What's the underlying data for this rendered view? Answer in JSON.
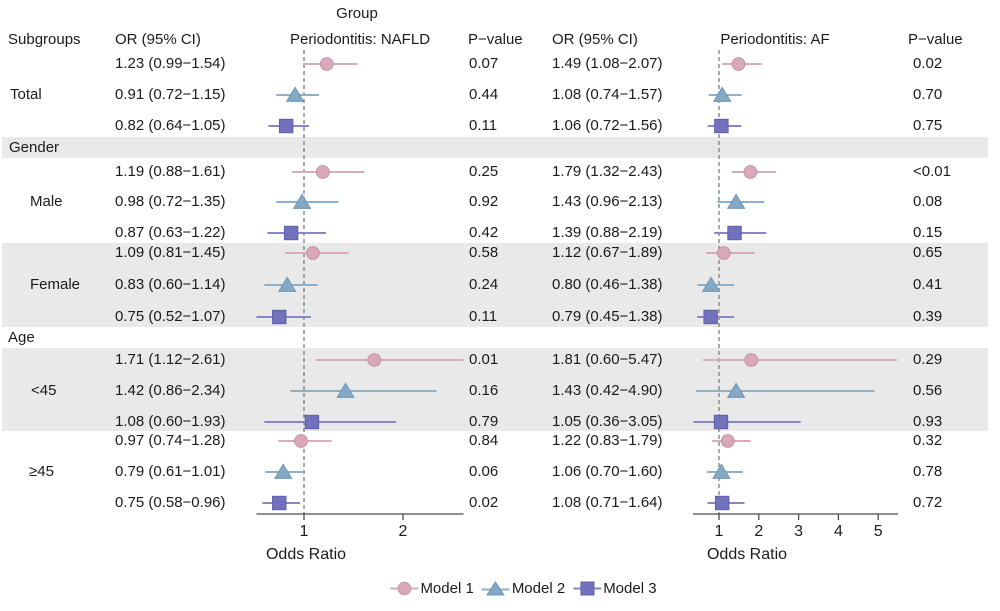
{
  "columns": {
    "subgroups": "Subgroups",
    "or_ci_left": "OR (95% CI)",
    "pvalue_left": "P−value",
    "or_ci_right": "OR (95% CI)",
    "pvalue_right": "P−value"
  },
  "colors": {
    "model1_fill": "#d9a9ba",
    "model1_stroke": "#c493a9",
    "model1_line": "#d7abbc",
    "model2_fill": "#84a9c6",
    "model2_stroke": "#6e97b6",
    "model2_line": "#8db0ca",
    "model3_fill": "#7171bc",
    "model3_stroke": "#5e5eae",
    "model3_line": "#8787c8",
    "band": "#e9e9e9",
    "axis": "#4a4a4a",
    "refline": "#858585",
    "text": "#1b1b1b"
  },
  "chart_data": {
    "type": "forest",
    "title": "Group",
    "legend": [
      "Model 1",
      "Model 2",
      "Model 3"
    ],
    "markers": {
      "Model 1": "circle",
      "Model 2": "triangle",
      "Model 3": "square"
    },
    "panels": [
      {
        "name": "Periodontitis: NAFLD",
        "xlabel": "Odds Ratio",
        "ticks": [
          1,
          2
        ],
        "xlim": [
          0.52,
          2.61
        ],
        "refline": 1,
        "scale": "linear"
      },
      {
        "name": "Periodontitis: AF",
        "xlabel": "Odds Ratio",
        "ticks": [
          1,
          2,
          3,
          4,
          5
        ],
        "xlim": [
          0.36,
          5.5
        ],
        "refline": 1,
        "scale": "linear"
      }
    ],
    "rows": [
      {
        "type": "subgroup",
        "label": "Total",
        "models": [
          {
            "model": "Model 1",
            "nafld": {
              "or": 1.23,
              "lo": 0.99,
              "hi": 1.54,
              "label": "1.23 (0.99−1.54)",
              "p": "0.07"
            },
            "af": {
              "or": 1.49,
              "lo": 1.08,
              "hi": 2.07,
              "label": "1.49 (1.08−2.07)",
              "p": "0.02"
            }
          },
          {
            "model": "Model 2",
            "nafld": {
              "or": 0.91,
              "lo": 0.72,
              "hi": 1.15,
              "label": "0.91 (0.72−1.15)",
              "p": "0.44"
            },
            "af": {
              "or": 1.08,
              "lo": 0.74,
              "hi": 1.57,
              "label": "1.08 (0.74−1.57)",
              "p": "0.70"
            }
          },
          {
            "model": "Model 3",
            "nafld": {
              "or": 0.82,
              "lo": 0.64,
              "hi": 1.05,
              "label": "0.82 (0.64−1.05)",
              "p": "0.11"
            },
            "af": {
              "or": 1.06,
              "lo": 0.72,
              "hi": 1.56,
              "label": "1.06 (0.72−1.56)",
              "p": "0.75"
            }
          }
        ]
      },
      {
        "type": "section",
        "label": "Gender"
      },
      {
        "type": "subgroup",
        "label": "Male",
        "models": [
          {
            "model": "Model 1",
            "nafld": {
              "or": 1.19,
              "lo": 0.88,
              "hi": 1.61,
              "label": "1.19 (0.88−1.61)",
              "p": "0.25"
            },
            "af": {
              "or": 1.79,
              "lo": 1.32,
              "hi": 2.43,
              "label": "1.79 (1.32−2.43)",
              "p": "<0.01"
            }
          },
          {
            "model": "Model 2",
            "nafld": {
              "or": 0.98,
              "lo": 0.72,
              "hi": 1.35,
              "label": "0.98 (0.72−1.35)",
              "p": "0.92"
            },
            "af": {
              "or": 1.43,
              "lo": 0.96,
              "hi": 2.13,
              "label": "1.43 (0.96−2.13)",
              "p": "0.08"
            }
          },
          {
            "model": "Model 3",
            "nafld": {
              "or": 0.87,
              "lo": 0.63,
              "hi": 1.22,
              "label": "0.87 (0.63−1.22)",
              "p": "0.42"
            },
            "af": {
              "or": 1.39,
              "lo": 0.88,
              "hi": 2.19,
              "label": "1.39 (0.88−2.19)",
              "p": "0.15"
            }
          }
        ]
      },
      {
        "type": "subgroup",
        "label": "Female",
        "models": [
          {
            "model": "Model 1",
            "nafld": {
              "or": 1.09,
              "lo": 0.81,
              "hi": 1.45,
              "label": "1.09 (0.81−1.45)",
              "p": "0.58"
            },
            "af": {
              "or": 1.12,
              "lo": 0.67,
              "hi": 1.89,
              "label": "1.12 (0.67−1.89)",
              "p": "0.65"
            }
          },
          {
            "model": "Model 2",
            "nafld": {
              "or": 0.83,
              "lo": 0.6,
              "hi": 1.14,
              "label": "0.83 (0.60−1.14)",
              "p": "0.24"
            },
            "af": {
              "or": 0.8,
              "lo": 0.46,
              "hi": 1.38,
              "label": "0.80 (0.46−1.38)",
              "p": "0.41"
            }
          },
          {
            "model": "Model 3",
            "nafld": {
              "or": 0.75,
              "lo": 0.52,
              "hi": 1.07,
              "label": "0.75 (0.52−1.07)",
              "p": "0.11"
            },
            "af": {
              "or": 0.79,
              "lo": 0.45,
              "hi": 1.38,
              "label": "0.79 (0.45−1.38)",
              "p": "0.39"
            }
          }
        ]
      },
      {
        "type": "section",
        "label": "Age"
      },
      {
        "type": "subgroup",
        "label": "<45",
        "models": [
          {
            "model": "Model 1",
            "nafld": {
              "or": 1.71,
              "lo": 1.12,
              "hi": 2.61,
              "label": "1.71 (1.12−2.61)",
              "p": "0.01"
            },
            "af": {
              "or": 1.81,
              "lo": 0.6,
              "hi": 5.47,
              "label": "1.81 (0.60−5.47)",
              "p": "0.29"
            }
          },
          {
            "model": "Model 2",
            "nafld": {
              "or": 1.42,
              "lo": 0.86,
              "hi": 2.34,
              "label": "1.42 (0.86−2.34)",
              "p": "0.16"
            },
            "af": {
              "or": 1.43,
              "lo": 0.42,
              "hi": 4.9,
              "label": "1.43 (0.42−4.90)",
              "p": "0.56"
            }
          },
          {
            "model": "Model 3",
            "nafld": {
              "or": 1.08,
              "lo": 0.6,
              "hi": 1.93,
              "label": "1.08 (0.60−1.93)",
              "p": "0.79"
            },
            "af": {
              "or": 1.05,
              "lo": 0.36,
              "hi": 3.05,
              "label": "1.05 (0.36−3.05)",
              "p": "0.93"
            }
          }
        ]
      },
      {
        "type": "subgroup",
        "label": "≥45",
        "models": [
          {
            "model": "Model 1",
            "nafld": {
              "or": 0.97,
              "lo": 0.74,
              "hi": 1.28,
              "label": "0.97 (0.74−1.28)",
              "p": "0.84"
            },
            "af": {
              "or": 1.22,
              "lo": 0.83,
              "hi": 1.79,
              "label": "1.22 (0.83−1.79)",
              "p": "0.32"
            }
          },
          {
            "model": "Model 2",
            "nafld": {
              "or": 0.79,
              "lo": 0.61,
              "hi": 1.01,
              "label": "0.79 (0.61−1.01)",
              "p": "0.06"
            },
            "af": {
              "or": 1.06,
              "lo": 0.7,
              "hi": 1.6,
              "label": "1.06 (0.70−1.60)",
              "p": "0.78"
            }
          },
          {
            "model": "Model 3",
            "nafld": {
              "or": 0.75,
              "lo": 0.58,
              "hi": 0.96,
              "label": "0.75 (0.58−0.96)",
              "p": "0.02"
            },
            "af": {
              "or": 1.08,
              "lo": 0.71,
              "hi": 1.64,
              "label": "1.08 (0.71−1.64)",
              "p": "0.72"
            }
          }
        ]
      }
    ]
  }
}
